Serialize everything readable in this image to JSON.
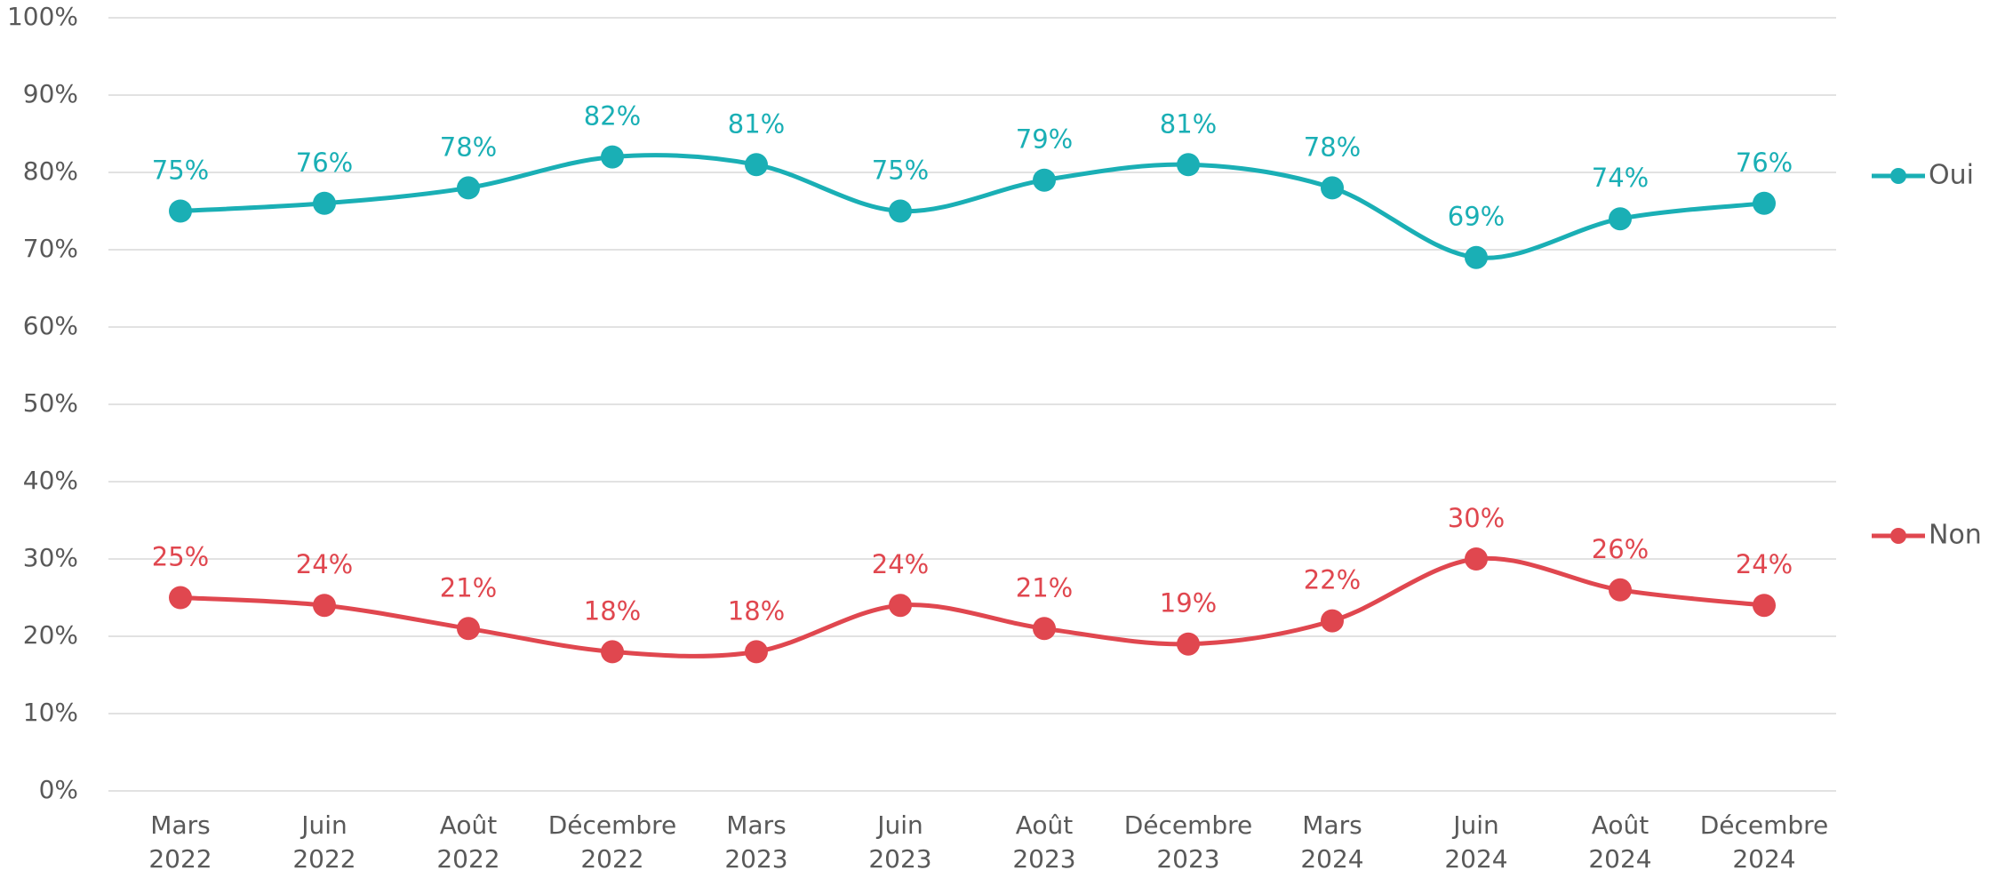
{
  "chart_data": {
    "type": "line",
    "categories": [
      "Mars 2022",
      "Juin 2022",
      "Août 2022",
      "Décembre 2022",
      "Mars 2023",
      "Juin 2023",
      "Août 2023",
      "Décembre 2023",
      "Mars 2024",
      "Juin 2024",
      "Août 2024",
      "Décembre 2024"
    ],
    "series": [
      {
        "name": "Oui",
        "color": "#1aafb5",
        "values": [
          75,
          76,
          78,
          82,
          81,
          75,
          79,
          81,
          78,
          69,
          74,
          76
        ]
      },
      {
        "name": "Non",
        "color": "#e0474f",
        "values": [
          25,
          24,
          21,
          18,
          18,
          24,
          21,
          19,
          22,
          30,
          26,
          24
        ]
      }
    ],
    "ylim": [
      0,
      100
    ],
    "yticks": [
      {
        "value": 0,
        "label": "0%"
      },
      {
        "value": 10,
        "label": "10%"
      },
      {
        "value": 20,
        "label": "20%"
      },
      {
        "value": 30,
        "label": "30%"
      },
      {
        "value": 40,
        "label": "40%"
      },
      {
        "value": 50,
        "label": "50%"
      },
      {
        "value": 60,
        "label": "60%"
      },
      {
        "value": 70,
        "label": "70%"
      },
      {
        "value": 80,
        "label": "80%"
      },
      {
        "value": 90,
        "label": "90%"
      },
      {
        "value": 100,
        "label": "100%"
      }
    ],
    "value_labels": [
      [
        "75%",
        "76%",
        "78%",
        "82%",
        "81%",
        "75%",
        "79%",
        "81%",
        "78%",
        "69%",
        "74%",
        "76%"
      ],
      [
        "25%",
        "24%",
        "21%",
        "18%",
        "18%",
        "24%",
        "21%",
        "19%",
        "22%",
        "30%",
        "26%",
        "24%"
      ]
    ],
    "grid": true,
    "smooth": true,
    "legend": "right"
  }
}
